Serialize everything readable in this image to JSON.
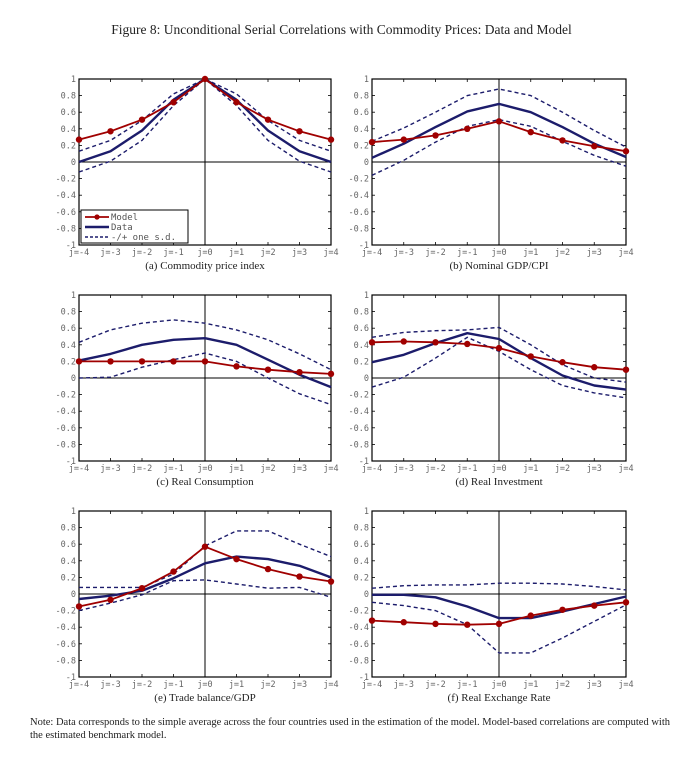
{
  "figure": {
    "title": "Figure 8: Unconditional Serial Correlations with Commodity Prices: Data and Model",
    "note": "Note: Data corresponds to the simple average across the four countries used in the estimation of the model. Model-based correlations are computed with the estimated benchmark model."
  },
  "colors": {
    "model": "#a00000",
    "data": "#1c1c6b",
    "band": "#1c1c6b",
    "axis": "#000000"
  },
  "legend": {
    "entries": [
      "Model",
      "Data",
      "-/+ one s.d."
    ],
    "placement": "bottom-left of panel (a)"
  },
  "chart_data": [
    {
      "type": "line",
      "caption": "(a) Commodity price index",
      "categories": [
        "j=-4",
        "j=-3",
        "j=-2",
        "j=-1",
        "j=0",
        "j=1",
        "j=2",
        "j=3",
        "j=4"
      ],
      "yticks": [
        "-1",
        "-0.8",
        "-0.6",
        "-0.4",
        "-0.2",
        "0",
        "0.2",
        "0.4",
        "0.6",
        "0.8",
        "1"
      ],
      "ylim": [
        -1,
        1
      ],
      "grid": false,
      "series": [
        {
          "name": "Model",
          "values": [
            0.27,
            0.37,
            0.51,
            0.72,
            1.0,
            0.72,
            0.51,
            0.37,
            0.27
          ]
        },
        {
          "name": "Data",
          "values": [
            0.0,
            0.13,
            0.38,
            0.75,
            1.0,
            0.75,
            0.38,
            0.13,
            0.0
          ]
        },
        {
          "name": "+ one s.d.",
          "values": [
            0.13,
            0.26,
            0.5,
            0.82,
            1.0,
            0.82,
            0.5,
            0.26,
            0.13
          ]
        },
        {
          "name": "- one s.d.",
          "values": [
            -0.12,
            0.01,
            0.26,
            0.68,
            1.0,
            0.68,
            0.26,
            0.01,
            -0.12
          ]
        }
      ]
    },
    {
      "type": "line",
      "caption": "(b) Nominal GDP/CPI",
      "categories": [
        "j=-4",
        "j=-3",
        "j=-2",
        "j=-1",
        "j=0",
        "j=1",
        "j=2",
        "j=3",
        "j=4"
      ],
      "yticks": [
        "-1",
        "-0.8",
        "-0.6",
        "-0.4",
        "-0.2",
        "0",
        "0.2",
        "0.4",
        "0.6",
        "0.8",
        "1"
      ],
      "ylim": [
        -1,
        1
      ],
      "grid": false,
      "series": [
        {
          "name": "Model",
          "values": [
            0.24,
            0.27,
            0.32,
            0.4,
            0.49,
            0.36,
            0.26,
            0.19,
            0.13
          ]
        },
        {
          "name": "Data",
          "values": [
            0.05,
            0.22,
            0.42,
            0.61,
            0.7,
            0.6,
            0.42,
            0.22,
            0.06
          ]
        },
        {
          "name": "+ one s.d.",
          "values": [
            0.25,
            0.41,
            0.6,
            0.8,
            0.88,
            0.8,
            0.6,
            0.38,
            0.18
          ]
        },
        {
          "name": "- one s.d.",
          "values": [
            -0.16,
            0.02,
            0.24,
            0.43,
            0.51,
            0.43,
            0.25,
            0.08,
            -0.05
          ]
        }
      ]
    },
    {
      "type": "line",
      "caption": "(c) Real Consumption",
      "categories": [
        "j=-4",
        "j=-3",
        "j=-2",
        "j=-1",
        "j=0",
        "j=1",
        "j=2",
        "j=3",
        "j=4"
      ],
      "yticks": [
        "-1",
        "-0.8",
        "-0.6",
        "-0.4",
        "-0.2",
        "0",
        "0.2",
        "0.4",
        "0.6",
        "0.8",
        "1"
      ],
      "ylim": [
        -1,
        1
      ],
      "grid": false,
      "series": [
        {
          "name": "Model",
          "values": [
            0.2,
            0.2,
            0.2,
            0.2,
            0.2,
            0.14,
            0.1,
            0.07,
            0.05
          ]
        },
        {
          "name": "Data",
          "values": [
            0.21,
            0.29,
            0.4,
            0.46,
            0.48,
            0.4,
            0.22,
            0.04,
            -0.11
          ]
        },
        {
          "name": "+ one s.d.",
          "values": [
            0.43,
            0.58,
            0.66,
            0.7,
            0.66,
            0.58,
            0.46,
            0.29,
            0.1
          ]
        },
        {
          "name": "- one s.d.",
          "values": [
            0.0,
            0.01,
            0.13,
            0.22,
            0.3,
            0.2,
            0.0,
            -0.19,
            -0.32
          ]
        }
      ]
    },
    {
      "type": "line",
      "caption": "(d) Real Investment",
      "categories": [
        "j=-4",
        "j=-3",
        "j=-2",
        "j=-1",
        "j=0",
        "j=1",
        "j=2",
        "j=3",
        "j=4"
      ],
      "yticks": [
        "-1",
        "-0.8",
        "-0.6",
        "-0.4",
        "-0.2",
        "0",
        "0.2",
        "0.4",
        "0.6",
        "0.8",
        "1"
      ],
      "ylim": [
        -1,
        1
      ],
      "grid": false,
      "series": [
        {
          "name": "Model",
          "values": [
            0.43,
            0.44,
            0.43,
            0.41,
            0.36,
            0.26,
            0.19,
            0.13,
            0.1
          ]
        },
        {
          "name": "Data",
          "values": [
            0.19,
            0.28,
            0.42,
            0.54,
            0.47,
            0.24,
            0.03,
            -0.09,
            -0.14
          ]
        },
        {
          "name": "+ one s.d.",
          "values": [
            0.49,
            0.55,
            0.57,
            0.58,
            0.61,
            0.4,
            0.16,
            0.0,
            -0.05
          ]
        },
        {
          "name": "- one s.d.",
          "values": [
            -0.11,
            0.01,
            0.24,
            0.49,
            0.32,
            0.1,
            -0.09,
            -0.18,
            -0.24
          ]
        }
      ]
    },
    {
      "type": "line",
      "caption": "(e) Trade balance/GDP",
      "categories": [
        "j=-4",
        "j=-3",
        "j=-2",
        "j=-1",
        "j=0",
        "j=1",
        "j=2",
        "j=3",
        "j=4"
      ],
      "yticks": [
        "-1",
        "-0.8",
        "-0.6",
        "-0.4",
        "-0.2",
        "0",
        "0.2",
        "0.4",
        "0.6",
        "0.8",
        "1"
      ],
      "ylim": [
        -1,
        1
      ],
      "grid": false,
      "series": [
        {
          "name": "Model",
          "values": [
            -0.15,
            -0.07,
            0.07,
            0.27,
            0.57,
            0.42,
            0.3,
            0.21,
            0.15
          ]
        },
        {
          "name": "Data",
          "values": [
            -0.06,
            -0.02,
            0.04,
            0.19,
            0.37,
            0.45,
            0.42,
            0.34,
            0.2
          ]
        },
        {
          "name": "+ one s.d.",
          "values": [
            0.08,
            0.08,
            0.08,
            0.24,
            0.58,
            0.76,
            0.76,
            0.6,
            0.45
          ]
        },
        {
          "name": "- one s.d.",
          "values": [
            -0.2,
            -0.11,
            -0.01,
            0.16,
            0.17,
            0.12,
            0.07,
            0.08,
            -0.04
          ]
        }
      ]
    },
    {
      "type": "line",
      "caption": "(f) Real Exchange Rate",
      "categories": [
        "j=-4",
        "j=-3",
        "j=-2",
        "j=-1",
        "j=0",
        "j=1",
        "j=2",
        "j=3",
        "j=4"
      ],
      "yticks": [
        "-1",
        "-0.8",
        "-0.6",
        "-0.4",
        "-0.2",
        "0",
        "0.2",
        "0.4",
        "0.6",
        "0.8",
        "1"
      ],
      "ylim": [
        -1,
        1
      ],
      "grid": false,
      "series": [
        {
          "name": "Model",
          "values": [
            -0.32,
            -0.34,
            -0.36,
            -0.37,
            -0.36,
            -0.26,
            -0.19,
            -0.14,
            -0.1
          ]
        },
        {
          "name": "Data",
          "values": [
            -0.01,
            -0.01,
            -0.04,
            -0.15,
            -0.29,
            -0.29,
            -0.21,
            -0.12,
            -0.03
          ]
        },
        {
          "name": "+ one s.d.",
          "values": [
            0.07,
            0.1,
            0.11,
            0.11,
            0.13,
            0.13,
            0.12,
            0.09,
            0.05
          ]
        },
        {
          "name": "- one s.d.",
          "values": [
            -0.1,
            -0.14,
            -0.2,
            -0.37,
            -0.71,
            -0.71,
            -0.53,
            -0.33,
            -0.13
          ]
        }
      ]
    }
  ]
}
